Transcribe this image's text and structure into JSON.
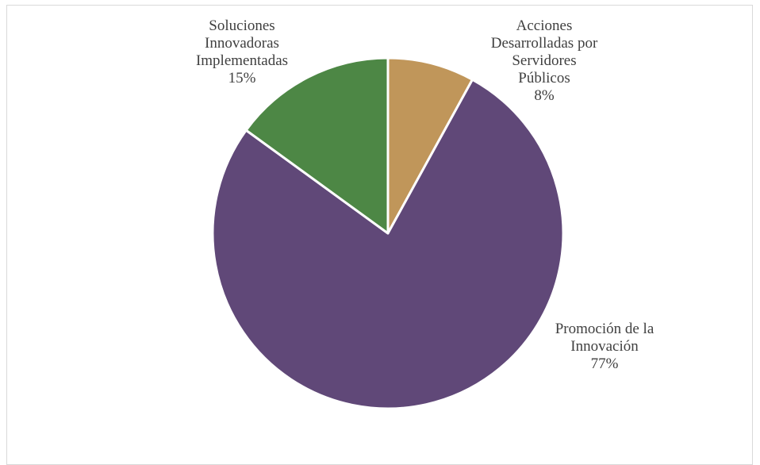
{
  "chart_data": {
    "type": "pie",
    "title": "",
    "slices": [
      {
        "label_lines": [
          "Acciones",
          "Desarrolladas por",
          "Servidores",
          "Públicos"
        ],
        "percent_label": "8%",
        "value": 8,
        "color": "#c0965a"
      },
      {
        "label_lines": [
          "Promoción de la",
          "Innovación"
        ],
        "percent_label": "77%",
        "value": 77,
        "color": "#604878"
      },
      {
        "label_lines": [
          "Soluciones",
          "Innovadoras",
          "Implementadas"
        ],
        "percent_label": "15%",
        "value": 15,
        "color": "#4d8745"
      }
    ],
    "start_angle_deg": 0,
    "direction": "clockwise",
    "legend": "none"
  }
}
